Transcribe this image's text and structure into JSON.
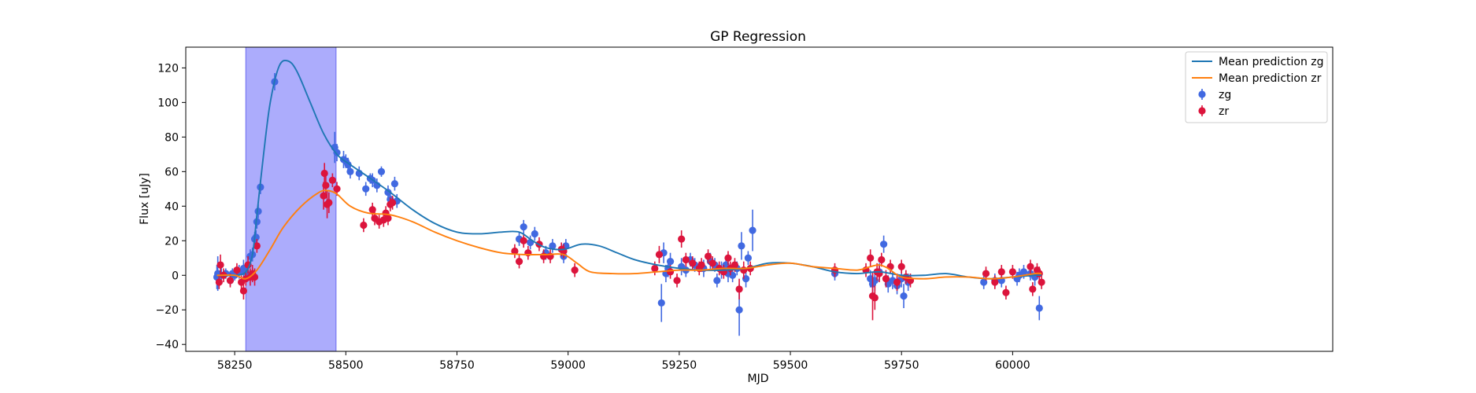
{
  "chart_data": {
    "type": "scatter",
    "title": "GP Regression",
    "xlabel": "MJD",
    "ylabel": "Flux [uJy]",
    "xlim": [
      58140,
      60720
    ],
    "ylim": [
      -44,
      132
    ],
    "xticks": [
      58250,
      58500,
      58750,
      59000,
      59250,
      59500,
      59750,
      60000
    ],
    "yticks": [
      -40,
      -20,
      0,
      20,
      40,
      60,
      80,
      100,
      120
    ],
    "grid": false,
    "legend_position": "top-right",
    "shaded_region": {
      "x": [
        58275,
        58478
      ],
      "color": "#a8a8fc"
    },
    "colors": {
      "zg": "#4169e1",
      "zr": "#dc143c",
      "mean_zg": "#1f77b4",
      "mean_zr": "#ff7f0e"
    },
    "legend": [
      {
        "label": "Mean prediction zg",
        "kind": "line",
        "color": "#1f77b4"
      },
      {
        "label": "Mean prediction zr",
        "kind": "line",
        "color": "#ff7f0e"
      },
      {
        "label": "zg",
        "kind": "errorbar",
        "color": "#4169e1"
      },
      {
        "label": "zr",
        "kind": "errorbar",
        "color": "#dc143c"
      }
    ],
    "series": [
      {
        "name": "Mean prediction zg",
        "kind": "line",
        "color": "#1f77b4",
        "points": [
          [
            58210,
            0
          ],
          [
            58250,
            0
          ],
          [
            58275,
            2
          ],
          [
            58290,
            12
          ],
          [
            58300,
            35
          ],
          [
            58315,
            70
          ],
          [
            58330,
            100
          ],
          [
            58350,
            121
          ],
          [
            58370,
            124
          ],
          [
            58390,
            118
          ],
          [
            58420,
            100
          ],
          [
            58450,
            82
          ],
          [
            58480,
            70
          ],
          [
            58510,
            64
          ],
          [
            58550,
            57
          ],
          [
            58600,
            48
          ],
          [
            58650,
            38
          ],
          [
            58700,
            30
          ],
          [
            58750,
            25
          ],
          [
            58800,
            24
          ],
          [
            58850,
            25
          ],
          [
            58890,
            25
          ],
          [
            58920,
            20
          ],
          [
            58950,
            16
          ],
          [
            58990,
            15
          ],
          [
            59030,
            18
          ],
          [
            59070,
            17
          ],
          [
            59110,
            13
          ],
          [
            59150,
            9
          ],
          [
            59200,
            6
          ],
          [
            59250,
            4
          ],
          [
            59300,
            3
          ],
          [
            59350,
            3
          ],
          [
            59400,
            4
          ],
          [
            59450,
            7
          ],
          [
            59500,
            7
          ],
          [
            59550,
            5
          ],
          [
            59600,
            2
          ],
          [
            59650,
            1
          ],
          [
            59700,
            2
          ],
          [
            59750,
            0
          ],
          [
            59800,
            0
          ],
          [
            59850,
            1
          ],
          [
            59900,
            -1
          ],
          [
            59950,
            -2
          ],
          [
            60000,
            -1
          ],
          [
            60050,
            0
          ],
          [
            60065,
            0
          ]
        ]
      },
      {
        "name": "Mean prediction zr",
        "kind": "line",
        "color": "#ff7f0e",
        "points": [
          [
            58210,
            0
          ],
          [
            58250,
            0
          ],
          [
            58275,
            -2
          ],
          [
            58300,
            3
          ],
          [
            58330,
            15
          ],
          [
            58360,
            28
          ],
          [
            58400,
            40
          ],
          [
            58440,
            48
          ],
          [
            58460,
            49
          ],
          [
            58480,
            47
          ],
          [
            58510,
            40
          ],
          [
            58550,
            36
          ],
          [
            58600,
            35
          ],
          [
            58650,
            31
          ],
          [
            58700,
            25
          ],
          [
            58750,
            20
          ],
          [
            58800,
            16
          ],
          [
            58850,
            13
          ],
          [
            58900,
            12
          ],
          [
            58950,
            12
          ],
          [
            58990,
            12
          ],
          [
            59020,
            7
          ],
          [
            59050,
            2
          ],
          [
            59100,
            1
          ],
          [
            59150,
            1
          ],
          [
            59200,
            2
          ],
          [
            59250,
            3
          ],
          [
            59300,
            3
          ],
          [
            59350,
            4
          ],
          [
            59400,
            4
          ],
          [
            59450,
            6
          ],
          [
            59500,
            7
          ],
          [
            59550,
            5
          ],
          [
            59600,
            4
          ],
          [
            59650,
            3
          ],
          [
            59680,
            5
          ],
          [
            59700,
            6
          ],
          [
            59720,
            4
          ],
          [
            59750,
            -1
          ],
          [
            59800,
            -2
          ],
          [
            59850,
            -1
          ],
          [
            59900,
            -1
          ],
          [
            59950,
            -2
          ],
          [
            60000,
            -1
          ],
          [
            60050,
            1
          ],
          [
            60065,
            1
          ]
        ]
      },
      {
        "name": "zg",
        "kind": "errorbar",
        "color": "#4169e1",
        "points": [
          [
            58210,
            -1,
            7
          ],
          [
            58212,
            1,
            10
          ],
          [
            58220,
            0,
            4
          ],
          [
            58230,
            1,
            3
          ],
          [
            58240,
            -3,
            3
          ],
          [
            58245,
            1,
            3
          ],
          [
            58250,
            0,
            3
          ],
          [
            58260,
            2,
            4
          ],
          [
            58270,
            4,
            5
          ],
          [
            58275,
            2,
            4
          ],
          [
            58280,
            6,
            5
          ],
          [
            58285,
            11,
            4
          ],
          [
            58290,
            12,
            4
          ],
          [
            58295,
            21,
            4
          ],
          [
            58298,
            22,
            4
          ],
          [
            58300,
            31,
            4
          ],
          [
            58303,
            37,
            4
          ],
          [
            58308,
            51,
            4
          ],
          [
            58340,
            112,
            5
          ],
          [
            58475,
            74,
            9
          ],
          [
            58480,
            71,
            5
          ],
          [
            58495,
            67,
            5
          ],
          [
            58500,
            66,
            4
          ],
          [
            58505,
            64,
            4
          ],
          [
            58510,
            60,
            4
          ],
          [
            58530,
            59,
            4
          ],
          [
            58545,
            50,
            4
          ],
          [
            58555,
            56,
            3
          ],
          [
            58560,
            55,
            4
          ],
          [
            58570,
            52,
            4
          ],
          [
            58580,
            60,
            3
          ],
          [
            58595,
            48,
            4
          ],
          [
            58600,
            44,
            4
          ],
          [
            58610,
            53,
            4
          ],
          [
            58615,
            43,
            4
          ],
          [
            58890,
            21,
            4
          ],
          [
            58900,
            28,
            4
          ],
          [
            58915,
            19,
            4
          ],
          [
            58925,
            24,
            4
          ],
          [
            58950,
            13,
            4
          ],
          [
            58965,
            17,
            4
          ],
          [
            58990,
            11,
            4
          ],
          [
            58995,
            17,
            4
          ],
          [
            59210,
            -16,
            11
          ],
          [
            59215,
            13,
            6
          ],
          [
            59220,
            1,
            5
          ],
          [
            59225,
            4,
            5
          ],
          [
            59230,
            8,
            5
          ],
          [
            59255,
            5,
            5
          ],
          [
            59265,
            3,
            4
          ],
          [
            59275,
            9,
            4
          ],
          [
            59285,
            6,
            4
          ],
          [
            59305,
            4,
            5
          ],
          [
            59320,
            8,
            5
          ],
          [
            59330,
            6,
            4
          ],
          [
            59335,
            -3,
            4
          ],
          [
            59345,
            3,
            5
          ],
          [
            59355,
            6,
            4
          ],
          [
            59360,
            1,
            5
          ],
          [
            59370,
            0,
            4
          ],
          [
            59380,
            4,
            4
          ],
          [
            59385,
            -20,
            15
          ],
          [
            59390,
            17,
            8
          ],
          [
            59400,
            -2,
            5
          ],
          [
            59405,
            10,
            4
          ],
          [
            59415,
            26,
            12
          ],
          [
            59600,
            1,
            4
          ],
          [
            59680,
            -2,
            5
          ],
          [
            59685,
            -5,
            6
          ],
          [
            59690,
            -3,
            6
          ],
          [
            59700,
            2,
            5
          ],
          [
            59710,
            18,
            5
          ],
          [
            59720,
            -5,
            5
          ],
          [
            59730,
            -3,
            5
          ],
          [
            59740,
            -6,
            5
          ],
          [
            59750,
            -2,
            5
          ],
          [
            59755,
            -12,
            7
          ],
          [
            59765,
            -4,
            5
          ],
          [
            59935,
            -4,
            4
          ],
          [
            59960,
            -3,
            4
          ],
          [
            59975,
            -3,
            4
          ],
          [
            60010,
            -2,
            4
          ],
          [
            60015,
            0,
            4
          ],
          [
            60025,
            2,
            4
          ],
          [
            60040,
            1,
            4
          ],
          [
            60050,
            -1,
            5
          ],
          [
            60060,
            -19,
            7
          ]
        ]
      },
      {
        "name": "zr",
        "kind": "errorbar",
        "color": "#dc143c",
        "points": [
          [
            58215,
            -4,
            4
          ],
          [
            58218,
            6,
            6
          ],
          [
            58225,
            0,
            4
          ],
          [
            58240,
            -3,
            4
          ],
          [
            58255,
            3,
            4
          ],
          [
            58265,
            -4,
            4
          ],
          [
            58270,
            -9,
            5
          ],
          [
            58275,
            -2,
            4
          ],
          [
            58280,
            6,
            5
          ],
          [
            58285,
            -1,
            5
          ],
          [
            58290,
            1,
            5
          ],
          [
            58295,
            -1,
            5
          ],
          [
            58300,
            17,
            4
          ],
          [
            58450,
            46,
            8
          ],
          [
            58452,
            59,
            6
          ],
          [
            58455,
            52,
            6
          ],
          [
            58458,
            41,
            8
          ],
          [
            58462,
            42,
            6
          ],
          [
            58470,
            55,
            4
          ],
          [
            58480,
            50,
            4
          ],
          [
            58540,
            29,
            4
          ],
          [
            58560,
            38,
            4
          ],
          [
            58565,
            33,
            4
          ],
          [
            58575,
            31,
            4
          ],
          [
            58585,
            32,
            4
          ],
          [
            58590,
            36,
            4
          ],
          [
            58595,
            33,
            4
          ],
          [
            58600,
            41,
            4
          ],
          [
            58605,
            42,
            4
          ],
          [
            58880,
            14,
            4
          ],
          [
            58890,
            8,
            4
          ],
          [
            58900,
            20,
            4
          ],
          [
            58910,
            13,
            4
          ],
          [
            58935,
            18,
            4
          ],
          [
            58945,
            11,
            4
          ],
          [
            58960,
            11,
            4
          ],
          [
            58985,
            15,
            4
          ],
          [
            58990,
            14,
            4
          ],
          [
            59015,
            3,
            4
          ],
          [
            59195,
            4,
            4
          ],
          [
            59205,
            12,
            5
          ],
          [
            59230,
            2,
            4
          ],
          [
            59245,
            -3,
            4
          ],
          [
            59255,
            21,
            5
          ],
          [
            59265,
            9,
            4
          ],
          [
            59280,
            7,
            4
          ],
          [
            59295,
            4,
            4
          ],
          [
            59300,
            6,
            4
          ],
          [
            59315,
            11,
            4
          ],
          [
            59325,
            7,
            4
          ],
          [
            59340,
            4,
            4
          ],
          [
            59350,
            2,
            4
          ],
          [
            59360,
            10,
            4
          ],
          [
            59365,
            4,
            4
          ],
          [
            59375,
            6,
            4
          ],
          [
            59385,
            -8,
            6
          ],
          [
            59395,
            3,
            5
          ],
          [
            59410,
            4,
            4
          ],
          [
            59600,
            3,
            4
          ],
          [
            59670,
            3,
            4
          ],
          [
            59680,
            10,
            5
          ],
          [
            59685,
            -12,
            14
          ],
          [
            59690,
            -13,
            7
          ],
          [
            59695,
            2,
            5
          ],
          [
            59700,
            1,
            5
          ],
          [
            59705,
            9,
            4
          ],
          [
            59715,
            -2,
            5
          ],
          [
            59725,
            5,
            4
          ],
          [
            59740,
            -4,
            5
          ],
          [
            59750,
            5,
            4
          ],
          [
            59760,
            -1,
            4
          ],
          [
            59770,
            -3,
            4
          ],
          [
            59940,
            1,
            4
          ],
          [
            59960,
            -4,
            4
          ],
          [
            59975,
            2,
            4
          ],
          [
            59985,
            -10,
            4
          ],
          [
            60000,
            2,
            4
          ],
          [
            60040,
            5,
            4
          ],
          [
            60045,
            -8,
            4
          ],
          [
            60055,
            3,
            4
          ],
          [
            60060,
            1,
            4
          ],
          [
            60065,
            -4,
            4
          ]
        ]
      }
    ]
  }
}
